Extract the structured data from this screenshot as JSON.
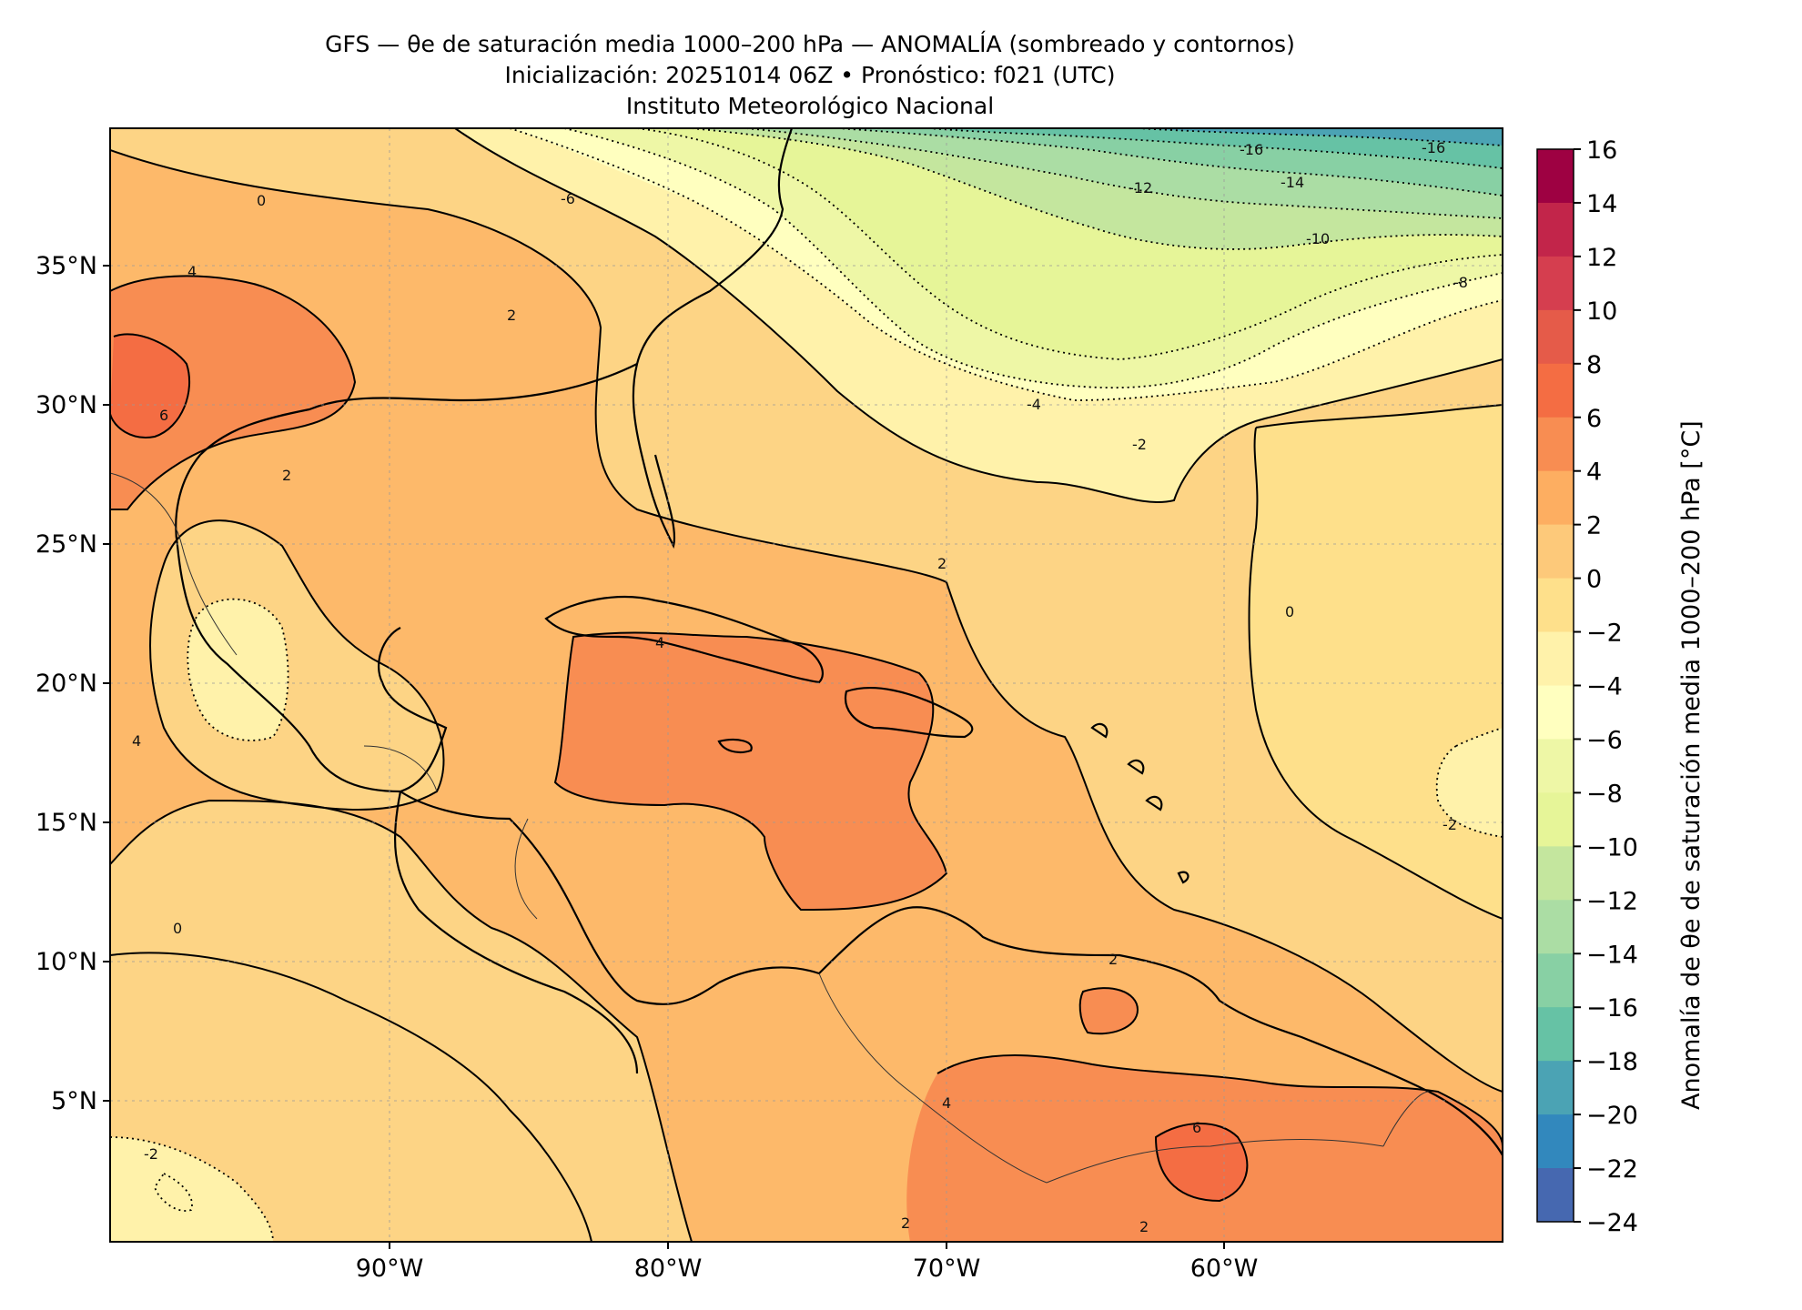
{
  "title_lines": [
    "GFS — θe de saturación media 1000–200 hPa — ANOMALÍA (sombreado y contornos)",
    "Inicialización: 20251014 06Z   •   Pronóstico: f021 (UTC)",
    "Instituto Meteorológico Nacional"
  ],
  "map": {
    "lon_ticks": [
      "90°W",
      "80°W",
      "70°W",
      "60°W"
    ],
    "lat_ticks": [
      "35°N",
      "30°N",
      "25°N",
      "20°N",
      "15°N",
      "10°N",
      "5°N"
    ],
    "contour_labels": [
      "-16",
      "-16",
      "-14",
      "-12",
      "-10",
      "-8",
      "-6",
      "-4",
      "-2",
      "0",
      "0",
      "2",
      "2",
      "2",
      "4",
      "4",
      "6",
      "4",
      "2",
      "2",
      "0",
      "-2",
      "2",
      "4",
      "6",
      "-2"
    ]
  },
  "colorbar": {
    "label": "Anomalía de θe de saturación media 1000–200 hPa [°C]",
    "ticks": [
      "16",
      "14",
      "12",
      "10",
      "8",
      "6",
      "4",
      "2",
      "0",
      "−2",
      "−4",
      "−6",
      "−8",
      "−10",
      "−12",
      "−14",
      "−16",
      "−18",
      "−20",
      "−22",
      "−24"
    ],
    "colors": [
      "#9e0142",
      "#c2254a",
      "#d53e4f",
      "#e55b49",
      "#f46d43",
      "#f88d52",
      "#fdae61",
      "#fdc97a",
      "#fee08b",
      "#fff2aa",
      "#ffffbf",
      "#eef7a6",
      "#e6f598",
      "#c4e69e",
      "#abdda4",
      "#88d0a4",
      "#66c2a5",
      "#4ba3b4",
      "#3288bd",
      "#4668b0",
      "#5e4fa2"
    ]
  }
}
